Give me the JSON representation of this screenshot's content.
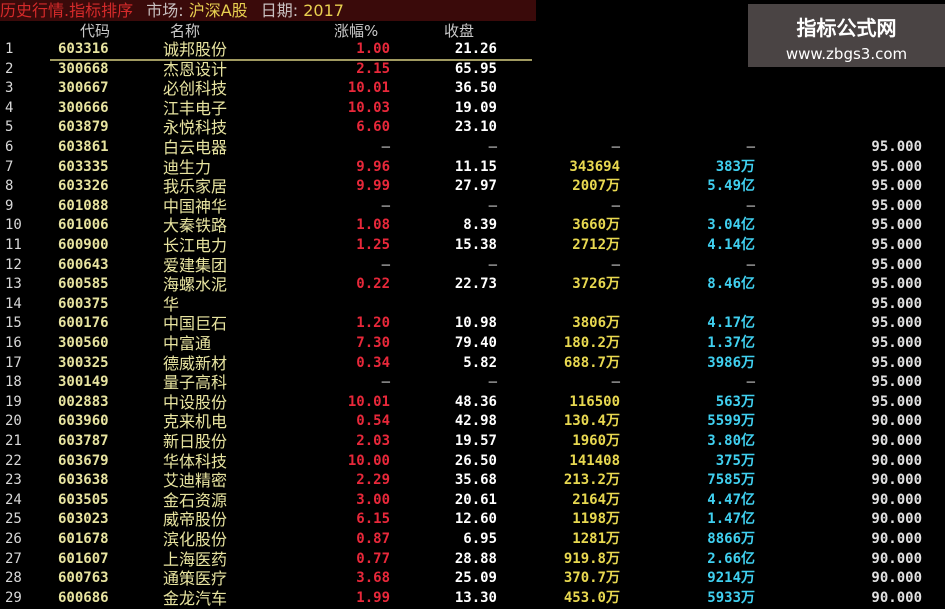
{
  "title": {
    "module": "历史行情.指标排序",
    "market_label": "市场:",
    "market_value": "沪深A股",
    "date_label": "日期:",
    "date_value": "2017"
  },
  "columns": {
    "code": "代码",
    "name": "名称",
    "change": "涨幅%",
    "close": "收盘"
  },
  "rows": [
    {
      "idx": "1",
      "code": "603316",
      "name": "诚邦股份",
      "chg": "1.00",
      "close": "21.26",
      "vol": "",
      "amt": "",
      "val": ""
    },
    {
      "idx": "2",
      "code": "300668",
      "name": "杰恩设计",
      "chg": "2.15",
      "close": "65.95",
      "vol": "",
      "amt": "",
      "val": ""
    },
    {
      "idx": "3",
      "code": "300667",
      "name": "必创科技",
      "chg": "10.01",
      "close": "36.50",
      "vol": "",
      "amt": "",
      "val": ""
    },
    {
      "idx": "4",
      "code": "300666",
      "name": "江丰电子",
      "chg": "10.03",
      "close": "19.09",
      "vol": "",
      "amt": "",
      "val": ""
    },
    {
      "idx": "5",
      "code": "603879",
      "name": "永悦科技",
      "chg": "6.60",
      "close": "23.10",
      "vol": "",
      "amt": "",
      "val": ""
    },
    {
      "idx": "6",
      "code": "603861",
      "name": "白云电器",
      "chg": "—",
      "close": "—",
      "vol": "—",
      "amt": "—",
      "val": "95.000"
    },
    {
      "idx": "7",
      "code": "603335",
      "name": "迪生力",
      "chg": "9.96",
      "close": "11.15",
      "vol": "343694",
      "amt": "383万",
      "val": "95.000"
    },
    {
      "idx": "8",
      "code": "603326",
      "name": "我乐家居",
      "chg": "9.99",
      "close": "27.97",
      "vol": "2007万",
      "amt": "5.49亿",
      "val": "95.000"
    },
    {
      "idx": "9",
      "code": "601088",
      "name": "中国神华",
      "chg": "—",
      "close": "—",
      "vol": "—",
      "amt": "—",
      "val": "95.000"
    },
    {
      "idx": "10",
      "code": "601006",
      "name": "大秦铁路",
      "chg": "1.08",
      "close": "8.39",
      "vol": "3660万",
      "amt": "3.04亿",
      "val": "95.000"
    },
    {
      "idx": "11",
      "code": "600900",
      "name": "长江电力",
      "chg": "1.25",
      "close": "15.38",
      "vol": "2712万",
      "amt": "4.14亿",
      "val": "95.000"
    },
    {
      "idx": "12",
      "code": "600643",
      "name": "爱建集团",
      "chg": "—",
      "close": "—",
      "vol": "—",
      "amt": "—",
      "val": "95.000"
    },
    {
      "idx": "13",
      "code": "600585",
      "name": "海螺水泥",
      "chg": "0.22",
      "close": "22.73",
      "vol": "3726万",
      "amt": "8.46亿",
      "val": "95.000"
    },
    {
      "idx": "14",
      "code": "600375",
      "name": "华",
      "chg": "",
      "close": "",
      "vol": "",
      "amt": "",
      "val": "95.000"
    },
    {
      "idx": "15",
      "code": "600176",
      "name": "中国巨石",
      "chg": "1.20",
      "close": "10.98",
      "vol": "3806万",
      "amt": "4.17亿",
      "val": "95.000"
    },
    {
      "idx": "16",
      "code": "300560",
      "name": "中富通",
      "chg": "7.30",
      "close": "79.40",
      "vol": "180.2万",
      "amt": "1.37亿",
      "val": "95.000"
    },
    {
      "idx": "17",
      "code": "300325",
      "name": "德威新材",
      "chg": "0.34",
      "close": "5.82",
      "vol": "688.7万",
      "amt": "3986万",
      "val": "95.000"
    },
    {
      "idx": "18",
      "code": "300149",
      "name": "量子高科",
      "chg": "—",
      "close": "—",
      "vol": "—",
      "amt": "—",
      "val": "95.000"
    },
    {
      "idx": "19",
      "code": "002883",
      "name": "中设股份",
      "chg": "10.01",
      "close": "48.36",
      "vol": "116500",
      "amt": "563万",
      "val": "95.000"
    },
    {
      "idx": "20",
      "code": "603960",
      "name": "克来机电",
      "chg": "0.54",
      "close": "42.98",
      "vol": "130.4万",
      "amt": "5599万",
      "val": "90.000"
    },
    {
      "idx": "21",
      "code": "603787",
      "name": "新日股份",
      "chg": "2.03",
      "close": "19.57",
      "vol": "1960万",
      "amt": "3.80亿",
      "val": "90.000"
    },
    {
      "idx": "22",
      "code": "603679",
      "name": "华体科技",
      "chg": "10.00",
      "close": "26.50",
      "vol": "141408",
      "amt": "375万",
      "val": "90.000"
    },
    {
      "idx": "23",
      "code": "603638",
      "name": "艾迪精密",
      "chg": "2.29",
      "close": "35.68",
      "vol": "213.2万",
      "amt": "7585万",
      "val": "90.000"
    },
    {
      "idx": "24",
      "code": "603505",
      "name": "金石资源",
      "chg": "3.00",
      "close": "20.61",
      "vol": "2164万",
      "amt": "4.47亿",
      "val": "90.000"
    },
    {
      "idx": "25",
      "code": "603023",
      "name": "威帝股份",
      "chg": "6.15",
      "close": "12.60",
      "vol": "1198万",
      "amt": "1.47亿",
      "val": "90.000"
    },
    {
      "idx": "26",
      "code": "601678",
      "name": "滨化股份",
      "chg": "0.87",
      "close": "6.95",
      "vol": "1281万",
      "amt": "8866万",
      "val": "90.000"
    },
    {
      "idx": "27",
      "code": "601607",
      "name": "上海医药",
      "chg": "0.77",
      "close": "28.88",
      "vol": "919.8万",
      "amt": "2.66亿",
      "val": "90.000"
    },
    {
      "idx": "28",
      "code": "600763",
      "name": "通策医疗",
      "chg": "3.68",
      "close": "25.09",
      "vol": "370.7万",
      "amt": "9214万",
      "val": "90.000"
    },
    {
      "idx": "29",
      "code": "600686",
      "name": "金龙汽车",
      "chg": "1.99",
      "close": "13.30",
      "vol": "453.0万",
      "amt": "5933万",
      "val": "90.000"
    }
  ],
  "watermark": {
    "name": "指标公式网",
    "url": "www.zbgs3.com"
  },
  "colors": {
    "code": "#e8e4a0",
    "change_up": "#e8283a",
    "close": "#ffffff",
    "volume": "#e8d850",
    "amount": "#40d0f0"
  }
}
